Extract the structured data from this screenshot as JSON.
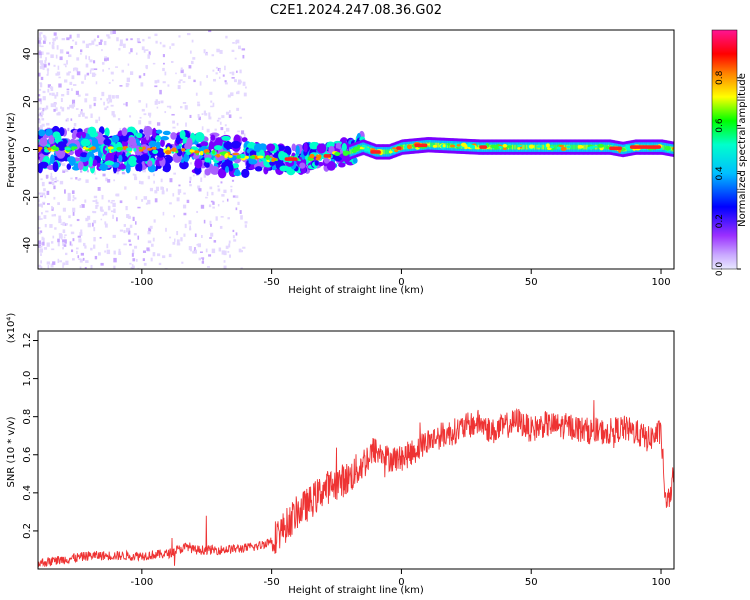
{
  "title": "C2E1.2024.247.08.36.G02",
  "chart_data": [
    {
      "type": "heatmap",
      "xlabel": "Height of straight line (km)",
      "ylabel": "Frequency (Hz)",
      "xlim": [
        -140,
        105
      ],
      "ylim": [
        -50,
        50
      ],
      "xticks": [
        -100,
        -50,
        0,
        50,
        100
      ],
      "yticks": [
        -40,
        -20,
        0,
        20,
        40
      ],
      "colorbar": {
        "label": "Normalized spectral amplitude",
        "range": [
          0,
          1
        ],
        "ticks": [
          "0.0",
          "0.2",
          "0.4",
          "0.6",
          "0.8"
        ],
        "colors": [
          "#d8d8ff",
          "#9b30ff",
          "#0000ff",
          "#00ffff",
          "#00ff00",
          "#ffff00",
          "#ff8000",
          "#ff0000",
          "#ff1493"
        ]
      },
      "ridge": {
        "x": [
          -140,
          -120,
          -100,
          -80,
          -60,
          -50,
          -40,
          -30,
          -20,
          -15,
          -10,
          -5,
          0,
          10,
          30,
          50,
          70,
          80,
          85,
          90,
          100,
          105
        ],
        "y": [
          0,
          0,
          0,
          -1,
          -3,
          -4,
          -4,
          -3,
          -1,
          1,
          -1,
          -1,
          1,
          2,
          1,
          1,
          1,
          1,
          0,
          1,
          1,
          0
        ]
      }
    },
    {
      "type": "line",
      "xlabel": "Height of straight line (km)",
      "ylabel": "SNR (10 * v/v)",
      "scale_label": "(x10⁴)",
      "xlim": [
        -140,
        105
      ],
      "ylim": [
        0,
        1.25
      ],
      "xticks": [
        -100,
        -50,
        0,
        50,
        100
      ],
      "yticks": [
        "0.2",
        "0.4",
        "0.6",
        "0.8",
        "1.0",
        "1.2"
      ],
      "color": "#ee3333",
      "series": [
        {
          "x": [
            -140,
            -130,
            -120,
            -110,
            -100,
            -90,
            -82,
            -80,
            -70,
            -60,
            -55,
            -50,
            -45,
            -40,
            -35,
            -30,
            -25,
            -20,
            -15,
            -12,
            -10,
            -5,
            0,
            5,
            10,
            15,
            20,
            25,
            30,
            35,
            40,
            45,
            50,
            55,
            60,
            65,
            70,
            75,
            80,
            85,
            90,
            95,
            100,
            102,
            105
          ],
          "values": [
            0.03,
            0.05,
            0.07,
            0.07,
            0.07,
            0.08,
            0.12,
            0.1,
            0.1,
            0.11,
            0.12,
            0.15,
            0.22,
            0.3,
            0.35,
            0.42,
            0.45,
            0.48,
            0.55,
            0.6,
            0.62,
            0.58,
            0.58,
            0.62,
            0.67,
            0.7,
            0.72,
            0.75,
            0.77,
            0.72,
            0.75,
            0.78,
            0.73,
            0.76,
            0.75,
            0.75,
            0.73,
            0.72,
            0.72,
            0.74,
            0.72,
            0.68,
            0.72,
            0.3,
            0.5
          ]
        }
      ]
    }
  ]
}
